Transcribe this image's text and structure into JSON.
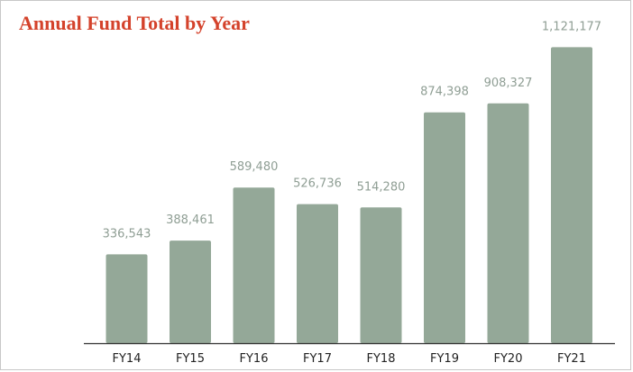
{
  "chart_data": {
    "type": "bar",
    "title": "Annual Fund Total by Year",
    "categories": [
      "FY14",
      "FY15",
      "FY16",
      "FY17",
      "FY18",
      "FY19",
      "FY20",
      "FY21"
    ],
    "values": [
      336543,
      388461,
      589480,
      526736,
      514280,
      874398,
      908327,
      1121177
    ],
    "value_labels": [
      "336,543",
      "388,461",
      "589,480",
      "526,736",
      "514,280",
      "874,398",
      "908,327",
      "1,121,177"
    ],
    "xlabel": "",
    "ylabel": "",
    "ylim": [
      0,
      1300000
    ],
    "grid": false,
    "colors": {
      "bar": "#94a898",
      "value_label": "#8f9e94",
      "axis": "#333333",
      "category_label": "#222222",
      "title": "#d4422b"
    }
  }
}
